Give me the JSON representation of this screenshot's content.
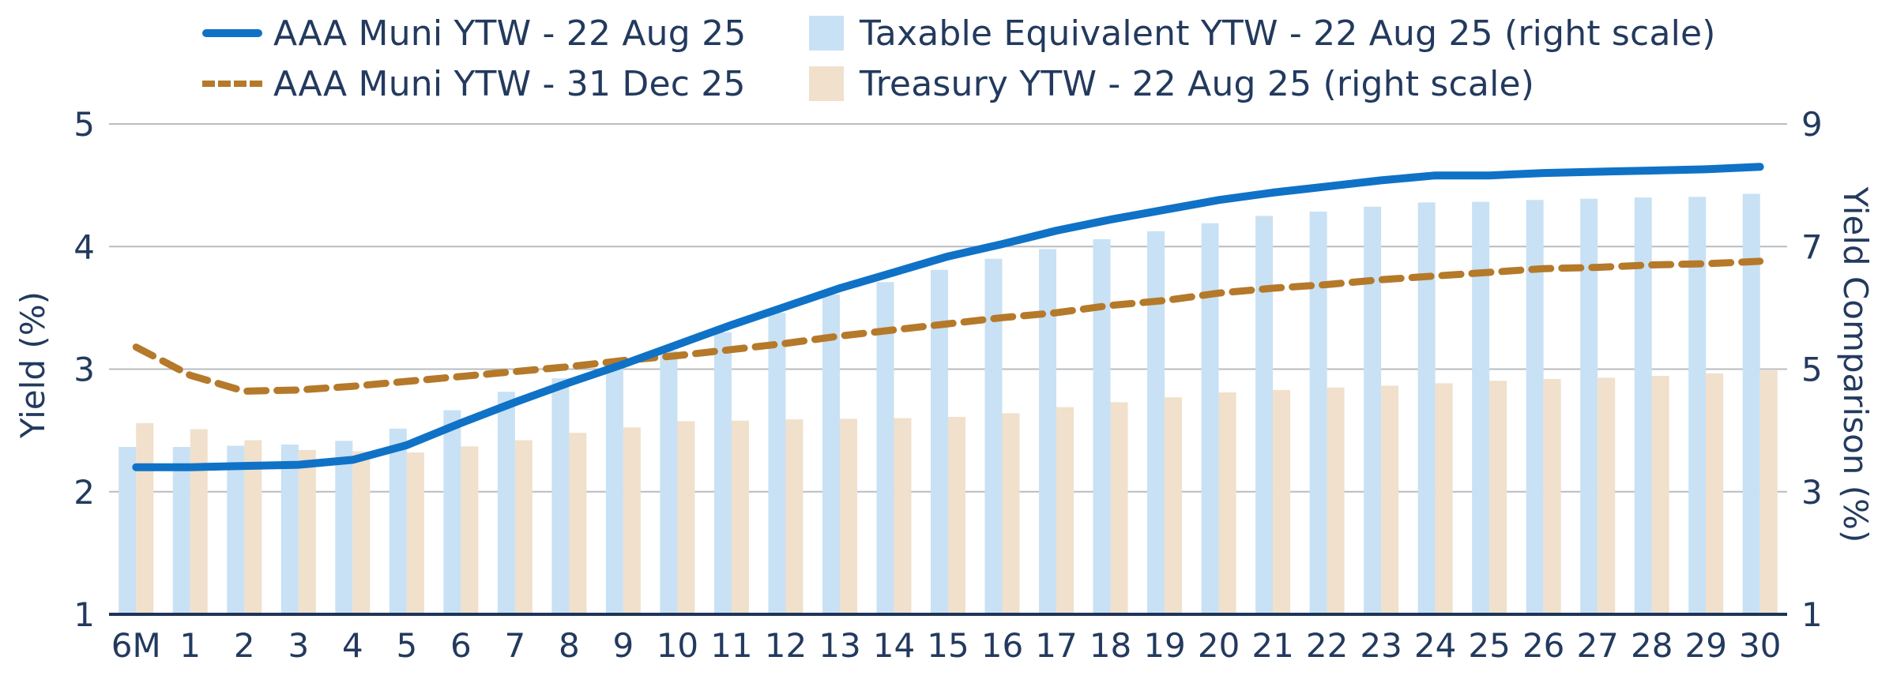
{
  "legend": {
    "muni_aug": "AAA Muni YTW - 22 Aug 25",
    "muni_dec": "AAA Muni YTW - 31 Dec 25",
    "taxable": "Taxable Equivalent YTW - 22 Aug 25 (right scale)",
    "treasury": "Treasury YTW - 22 Aug 25 (right scale)"
  },
  "colors": {
    "muni_aug": "#0f72c6",
    "muni_dec": "#b5792a",
    "taxable": "#c8e1f4",
    "treasury": "#f0e0cc",
    "axis": "#1d3557",
    "grid": "#b9bcc1"
  },
  "chart_data": {
    "type": "bar",
    "categories": [
      "6M",
      "1",
      "2",
      "3",
      "4",
      "5",
      "6",
      "7",
      "8",
      "9",
      "10",
      "11",
      "12",
      "13",
      "14",
      "15",
      "16",
      "17",
      "18",
      "19",
      "20",
      "21",
      "22",
      "23",
      "24",
      "25",
      "26",
      "27",
      "28",
      "29",
      "30"
    ],
    "ylabel": "Yield (%)",
    "y2label": "Yield Comparison (%)",
    "ylim": [
      1,
      5
    ],
    "y2lim": [
      1,
      9
    ],
    "yticks": [
      1,
      2,
      3,
      4,
      5
    ],
    "y2ticks": [
      1,
      3,
      5,
      7,
      9
    ],
    "grid": true,
    "legend_position": "top",
    "series": [
      {
        "name": "Taxable Equivalent YTW - 22 Aug 25 (right scale)",
        "type": "bar",
        "axis": "right",
        "values": [
          3.73,
          3.73,
          3.75,
          3.77,
          3.83,
          4.03,
          4.33,
          4.63,
          4.85,
          5.05,
          5.3,
          5.6,
          5.92,
          6.22,
          6.42,
          6.62,
          6.8,
          6.96,
          7.12,
          7.25,
          7.38,
          7.5,
          7.57,
          7.65,
          7.72,
          7.73,
          7.76,
          7.78,
          7.8,
          7.81,
          7.86
        ]
      },
      {
        "name": "Treasury YTW - 22 Aug 25 (right scale)",
        "type": "bar",
        "axis": "right",
        "values": [
          4.12,
          4.02,
          3.84,
          3.68,
          3.66,
          3.64,
          3.74,
          3.84,
          3.96,
          4.05,
          4.15,
          4.16,
          4.18,
          4.19,
          4.2,
          4.22,
          4.28,
          4.38,
          4.46,
          4.54,
          4.62,
          4.66,
          4.7,
          4.73,
          4.77,
          4.81,
          4.84,
          4.86,
          4.89,
          4.93,
          4.98
        ]
      },
      {
        "name": "AAA Muni YTW - 22 Aug 25",
        "type": "line",
        "axis": "left",
        "values": [
          2.2,
          2.2,
          2.21,
          2.22,
          2.26,
          2.38,
          2.56,
          2.73,
          2.89,
          3.04,
          3.2,
          3.36,
          3.51,
          3.66,
          3.79,
          3.92,
          4.02,
          4.13,
          4.22,
          4.3,
          4.38,
          4.44,
          4.49,
          4.54,
          4.58,
          4.58,
          4.6,
          4.61,
          4.62,
          4.63,
          4.65
        ]
      },
      {
        "name": "AAA Muni YTW - 31 Dec 25",
        "type": "line",
        "style": "dashed",
        "axis": "left",
        "values": [
          3.18,
          2.95,
          2.82,
          2.83,
          2.86,
          2.9,
          2.94,
          2.98,
          3.02,
          3.07,
          3.11,
          3.16,
          3.21,
          3.27,
          3.32,
          3.37,
          3.42,
          3.46,
          3.52,
          3.56,
          3.62,
          3.66,
          3.69,
          3.73,
          3.76,
          3.79,
          3.82,
          3.83,
          3.85,
          3.86,
          3.88
        ]
      }
    ]
  }
}
